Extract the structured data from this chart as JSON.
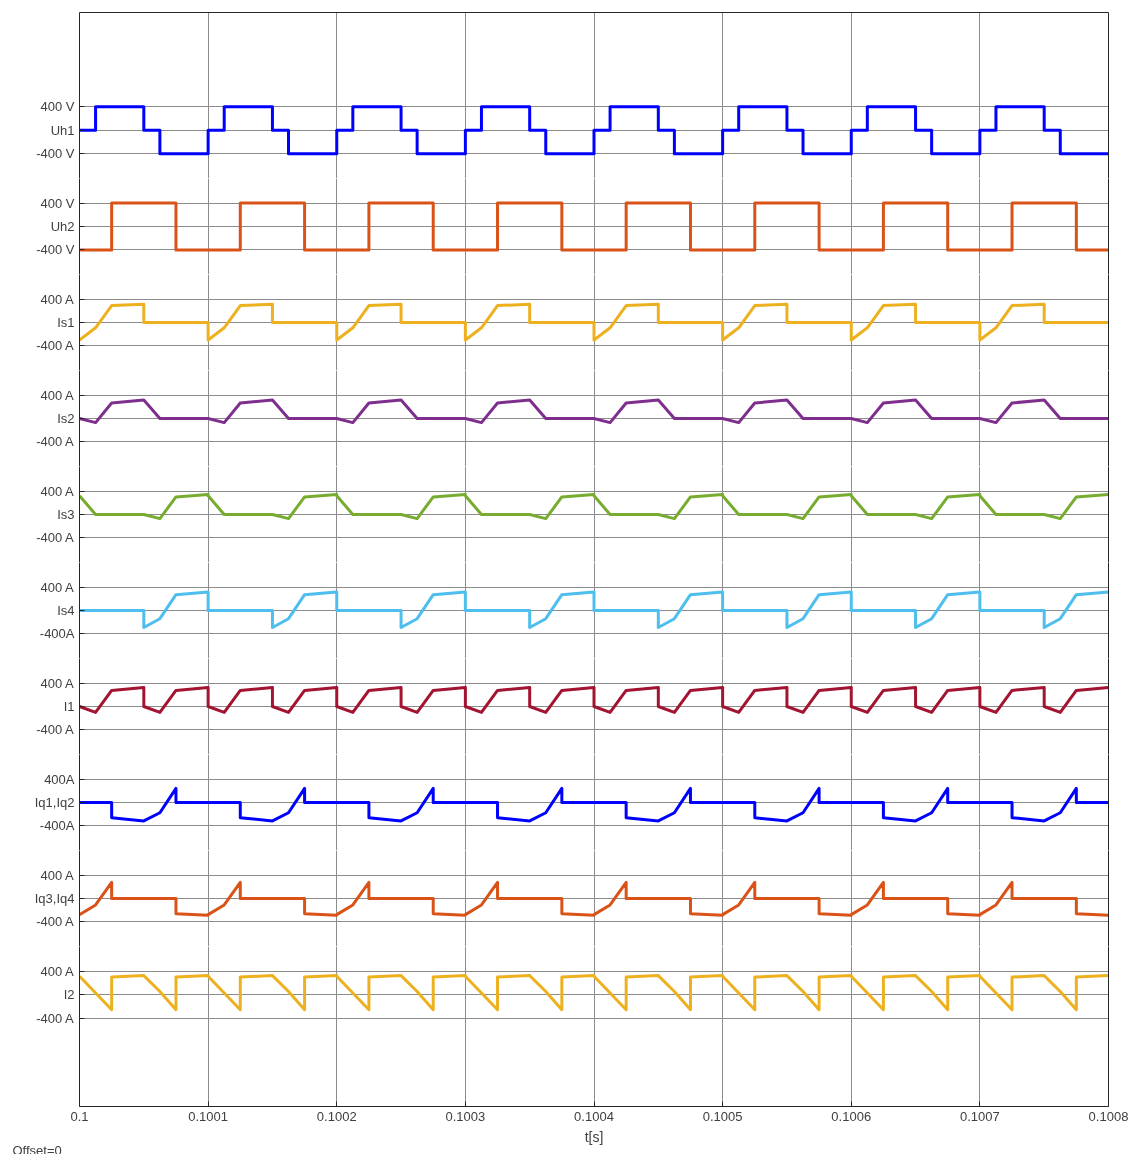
{
  "chart_data": [
    {
      "type": "line",
      "color": "#0000ff",
      "ylim": [
        -820,
        2000
      ],
      "yticks": [
        {
          "value": -400,
          "label": "-400 V"
        },
        {
          "value": 0,
          "label": "Uh1"
        },
        {
          "value": 400,
          "label": "400 V"
        }
      ],
      "xlim": [
        0.1,
        0.1008
      ],
      "xticks": [
        0.1,
        0.1001,
        0.1002,
        0.1003,
        0.1004,
        0.1005,
        0.1006,
        0.1007,
        0.1008
      ],
      "grid": true,
      "tick_labels": "y",
      "x": [
        0.1,
        0.1000125,
        0.1000125,
        0.10005,
        0.10005,
        0.1000625,
        0.1000625,
        0.1001,
        0.1001,
        0.1001125,
        0.1001125,
        0.10015,
        0.10015,
        0.1001625,
        0.1001625,
        0.1002,
        0.1002,
        0.1002125,
        0.1002125,
        0.10025,
        0.10025,
        0.1002625,
        0.1002625,
        0.1003,
        0.1003,
        0.1003125,
        0.1003125,
        0.10035,
        0.10035,
        0.1003625,
        0.1003625,
        0.1004,
        0.1004,
        0.1004125,
        0.1004125,
        0.10045,
        0.10045,
        0.1004625,
        0.1004625,
        0.1005,
        0.1005,
        0.1005125,
        0.1005125,
        0.10055,
        0.10055,
        0.1005625,
        0.1005625,
        0.1006,
        0.1006,
        0.1006125,
        0.1006125,
        0.10065,
        0.10065,
        0.1006625,
        0.1006625,
        0.1007,
        0.1007,
        0.1007125,
        0.1007125,
        0.10075,
        0.10075,
        0.1007625,
        0.1007625,
        0.1008
      ],
      "values": [
        0,
        0,
        400,
        400,
        0,
        0,
        -400,
        -400,
        0,
        0,
        400,
        400,
        0,
        0,
        -400,
        -400,
        0,
        0,
        400,
        400,
        0,
        0,
        -400,
        -400,
        0,
        0,
        400,
        400,
        0,
        0,
        -400,
        -400,
        0,
        0,
        400,
        400,
        0,
        0,
        -400,
        -400,
        0,
        0,
        400,
        400,
        0,
        0,
        -400,
        -400,
        0,
        0,
        400,
        400,
        0,
        0,
        -400,
        -400,
        0,
        0,
        400,
        400,
        0,
        0,
        -400,
        -400
      ]
    },
    {
      "type": "line",
      "color": "#d95319",
      "ylim": [
        -820,
        820
      ],
      "yticks": [
        {
          "value": -400,
          "label": "-400 V"
        },
        {
          "value": 0,
          "label": "Uh2"
        },
        {
          "value": 400,
          "label": "400 V"
        }
      ],
      "xlim": [
        0.1,
        0.1008
      ],
      "xticks": [
        0.1,
        0.1001,
        0.1002,
        0.1003,
        0.1004,
        0.1005,
        0.1006,
        0.1007,
        0.1008
      ],
      "grid": true,
      "tick_labels": "y",
      "x": [
        0.1,
        0.100025,
        0.100025,
        0.100075,
        0.100075,
        0.1001,
        0.1001,
        0.100125,
        0.100125,
        0.100175,
        0.100175,
        0.1002,
        0.1002,
        0.100225,
        0.100225,
        0.100275,
        0.100275,
        0.1003,
        0.1003,
        0.100325,
        0.100325,
        0.100375,
        0.100375,
        0.1004,
        0.1004,
        0.100425,
        0.100425,
        0.100475,
        0.100475,
        0.1005,
        0.1005,
        0.100525,
        0.100525,
        0.100575,
        0.100575,
        0.1006,
        0.1006,
        0.100625,
        0.100625,
        0.100675,
        0.100675,
        0.1007,
        0.1007,
        0.100725,
        0.100725,
        0.100775,
        0.100775,
        0.1008
      ],
      "values": [
        -400,
        -400,
        400,
        400,
        -400,
        -400,
        -400,
        -400,
        400,
        400,
        -400,
        -400,
        -400,
        -400,
        400,
        400,
        -400,
        -400,
        -400,
        -400,
        400,
        400,
        -400,
        -400,
        -400,
        -400,
        400,
        400,
        -400,
        -400,
        -400,
        -400,
        400,
        400,
        -400,
        -400,
        -400,
        -400,
        400,
        400,
        -400,
        -400,
        -400,
        -400,
        400,
        400,
        -400,
        -400
      ]
    },
    {
      "type": "line",
      "color": "#edb120",
      "ylim": [
        -820,
        820
      ],
      "yticks": [
        {
          "value": -400,
          "label": "-400 A"
        },
        {
          "value": 0,
          "label": "Is1"
        },
        {
          "value": 400,
          "label": "400 A"
        }
      ],
      "xlim": [
        0.1,
        0.1008
      ],
      "xticks": [
        0.1,
        0.1001,
        0.1002,
        0.1003,
        0.1004,
        0.1005,
        0.1006,
        0.1007,
        0.1008
      ],
      "grid": true,
      "tick_labels": "y",
      "x": [
        0.1,
        0.1000125,
        0.100025,
        0.10005,
        0.10005,
        0.1001,
        0.1001,
        0.1001125,
        0.100125,
        0.10015,
        0.10015,
        0.1002,
        0.1002,
        0.1002125,
        0.100225,
        0.10025,
        0.10025,
        0.1003,
        0.1003,
        0.1003125,
        0.100325,
        0.10035,
        0.10035,
        0.1004,
        0.1004,
        0.1004125,
        0.100425,
        0.10045,
        0.10045,
        0.1005,
        0.1005,
        0.1005125,
        0.100525,
        0.10055,
        0.10055,
        0.1006,
        0.1006,
        0.1006125,
        0.100625,
        0.10065,
        0.10065,
        0.1007,
        0.1007,
        0.1007125,
        0.100725,
        0.10075,
        0.10075,
        0.1008
      ],
      "values": [
        -300,
        -90,
        290,
        310,
        0,
        0,
        -300,
        -90,
        290,
        310,
        0,
        0,
        -300,
        -90,
        290,
        310,
        0,
        0,
        -300,
        -90,
        290,
        310,
        0,
        0,
        -300,
        -90,
        290,
        310,
        0,
        0,
        -300,
        -90,
        290,
        310,
        0,
        0,
        -300,
        -90,
        290,
        310,
        0,
        0,
        -300,
        -90,
        290,
        310,
        0,
        0
      ]
    },
    {
      "type": "line",
      "color": "#7e2f8e",
      "ylim": [
        -820,
        820
      ],
      "yticks": [
        {
          "value": -400,
          "label": "-400 A"
        },
        {
          "value": 0,
          "label": "Is2"
        },
        {
          "value": 400,
          "label": "400 A"
        }
      ],
      "xlim": [
        0.1,
        0.1008
      ],
      "xticks": [
        0.1,
        0.1001,
        0.1002,
        0.1003,
        0.1004,
        0.1005,
        0.1006,
        0.1007,
        0.1008
      ],
      "grid": true,
      "tick_labels": "y",
      "x": [
        0.1,
        0.1000125,
        0.100025,
        0.10005,
        0.1000625,
        0.1001,
        0.1001,
        0.1001125,
        0.100125,
        0.10015,
        0.1001625,
        0.1002,
        0.1002,
        0.1002125,
        0.100225,
        0.10025,
        0.1002625,
        0.1003,
        0.1003,
        0.1003125,
        0.100325,
        0.10035,
        0.1003625,
        0.1004,
        0.1004,
        0.1004125,
        0.100425,
        0.10045,
        0.1004625,
        0.1005,
        0.1005,
        0.1005125,
        0.100525,
        0.10055,
        0.1005625,
        0.1006,
        0.1006,
        0.1006125,
        0.100625,
        0.10065,
        0.1006625,
        0.1007,
        0.1007,
        0.1007125,
        0.100725,
        0.10075,
        0.1007625,
        0.1008
      ],
      "values": [
        0,
        -70,
        265,
        315,
        0,
        0,
        0,
        -70,
        265,
        315,
        0,
        0,
        0,
        -70,
        265,
        315,
        0,
        0,
        0,
        -70,
        265,
        315,
        0,
        0,
        0,
        -70,
        265,
        315,
        0,
        0,
        0,
        -70,
        265,
        315,
        0,
        0,
        0,
        -70,
        265,
        315,
        0,
        0,
        0,
        -70,
        265,
        315,
        0,
        0
      ]
    },
    {
      "type": "line",
      "color": "#77ac30",
      "ylim": [
        -820,
        820
      ],
      "yticks": [
        {
          "value": -400,
          "label": "-400 A"
        },
        {
          "value": 0,
          "label": "Is3"
        },
        {
          "value": 400,
          "label": "400 A"
        }
      ],
      "xlim": [
        0.1,
        0.1008
      ],
      "xticks": [
        0.1,
        0.1001,
        0.1002,
        0.1003,
        0.1004,
        0.1005,
        0.1006,
        0.1007,
        0.1008
      ],
      "grid": true,
      "tick_labels": "y",
      "x": [
        0.1,
        0.1000125,
        0.10005,
        0.1000625,
        0.100075,
        0.1001,
        0.1001,
        0.1001125,
        0.10015,
        0.1001625,
        0.100175,
        0.1002,
        0.1002,
        0.1002125,
        0.10025,
        0.1002625,
        0.100275,
        0.1003,
        0.1003,
        0.1003125,
        0.10035,
        0.1003625,
        0.100375,
        0.1004,
        0.1004,
        0.1004125,
        0.10045,
        0.1004625,
        0.100475,
        0.1005,
        0.1005,
        0.1005125,
        0.10055,
        0.1005625,
        0.100575,
        0.1006,
        0.1006,
        0.1006125,
        0.10065,
        0.1006625,
        0.100675,
        0.1007,
        0.1007,
        0.1007125,
        0.10075,
        0.1007625,
        0.100775,
        0.1008
      ],
      "values": [
        320,
        0,
        0,
        -70,
        300,
        340,
        320,
        0,
        0,
        -70,
        300,
        340,
        320,
        0,
        0,
        -70,
        300,
        340,
        320,
        0,
        0,
        -70,
        300,
        340,
        320,
        0,
        0,
        -70,
        300,
        340,
        320,
        0,
        0,
        -70,
        300,
        340,
        320,
        0,
        0,
        -70,
        300,
        340,
        320,
        0,
        0,
        -70,
        300,
        340
      ]
    },
    {
      "type": "line",
      "color": "#4dbeee",
      "ylim": [
        -820,
        820
      ],
      "yticks": [
        {
          "value": -400,
          "label": "-400A"
        },
        {
          "value": 0,
          "label": "Is4"
        },
        {
          "value": 400,
          "label": "400 A"
        }
      ],
      "xlim": [
        0.1,
        0.1008
      ],
      "xticks": [
        0.1,
        0.1001,
        0.1002,
        0.1003,
        0.1004,
        0.1005,
        0.1006,
        0.1007,
        0.1008
      ],
      "grid": true,
      "tick_labels": "y",
      "x": [
        0.1,
        0.10005,
        0.10005,
        0.1000625,
        0.100075,
        0.1001,
        0.1001,
        0.10015,
        0.10015,
        0.1001625,
        0.100175,
        0.1002,
        0.1002,
        0.10025,
        0.10025,
        0.1002625,
        0.100275,
        0.1003,
        0.1003,
        0.10035,
        0.10035,
        0.1003625,
        0.100375,
        0.1004,
        0.1004,
        0.10045,
        0.10045,
        0.1004625,
        0.100475,
        0.1005,
        0.1005,
        0.10055,
        0.10055,
        0.1005625,
        0.100575,
        0.1006,
        0.1006,
        0.10065,
        0.10065,
        0.1006625,
        0.100675,
        0.1007,
        0.1007,
        0.10075,
        0.10075,
        0.1007625,
        0.100775,
        0.1008
      ],
      "values": [
        0,
        0,
        -290,
        -140,
        270,
        315,
        0,
        0,
        -290,
        -140,
        270,
        315,
        0,
        0,
        -290,
        -140,
        270,
        315,
        0,
        0,
        -290,
        -140,
        270,
        315,
        0,
        0,
        -290,
        -140,
        270,
        315,
        0,
        0,
        -290,
        -140,
        270,
        315,
        0,
        0,
        -290,
        -140,
        270,
        315,
        0,
        0,
        -290,
        -140,
        270,
        315
      ]
    },
    {
      "type": "line",
      "color": "#a2142f",
      "ylim": [
        -820,
        820
      ],
      "yticks": [
        {
          "value": -400,
          "label": "-400 A"
        },
        {
          "value": 0,
          "label": "I1"
        },
        {
          "value": 400,
          "label": "400 A"
        }
      ],
      "xlim": [
        0.1,
        0.1008
      ],
      "xticks": [
        0.1,
        0.1001,
        0.1002,
        0.1003,
        0.1004,
        0.1005,
        0.1006,
        0.1007,
        0.1008
      ],
      "grid": true,
      "tick_labels": "y",
      "x": [
        0.1,
        0.1000125,
        0.100025,
        0.10005,
        0.10005,
        0.1000625,
        0.100075,
        0.1001,
        0.1001,
        0.1001125,
        0.100125,
        0.10015,
        0.10015,
        0.1001625,
        0.100175,
        0.1002,
        0.1002,
        0.1002125,
        0.100225,
        0.10025,
        0.10025,
        0.1002625,
        0.100275,
        0.1003,
        0.1003,
        0.1003125,
        0.100325,
        0.10035,
        0.10035,
        0.1003625,
        0.100375,
        0.1004,
        0.1004,
        0.1004125,
        0.100425,
        0.10045,
        0.10045,
        0.1004625,
        0.100475,
        0.1005,
        0.1005,
        0.1005125,
        0.100525,
        0.10055,
        0.10055,
        0.1005625,
        0.100575,
        0.1006,
        0.1006,
        0.1006125,
        0.100625,
        0.10065,
        0.10065,
        0.1006625,
        0.100675,
        0.1007,
        0.1007,
        0.1007125,
        0.100725,
        0.10075,
        0.10075,
        0.1007625,
        0.100775,
        0.1008
      ],
      "values": [
        0,
        -100,
        275,
        325,
        0,
        -100,
        275,
        325,
        0,
        -100,
        275,
        325,
        0,
        -100,
        275,
        325,
        0,
        -100,
        275,
        325,
        0,
        -100,
        275,
        325,
        0,
        -100,
        275,
        325,
        0,
        -100,
        275,
        325,
        0,
        -100,
        275,
        325,
        0,
        -100,
        275,
        325,
        0,
        -100,
        275,
        325,
        0,
        -100,
        275,
        325,
        0,
        -100,
        275,
        325,
        0,
        -100,
        275,
        325,
        0,
        -100,
        275,
        325,
        0,
        -100,
        275,
        325
      ]
    },
    {
      "type": "line",
      "color": "#0000ff",
      "ylim": [
        -820,
        820
      ],
      "yticks": [
        {
          "value": -400,
          "label": "-400A"
        },
        {
          "value": 0,
          "label": "Iq1,Iq2"
        },
        {
          "value": 400,
          "label": "400A"
        }
      ],
      "xlim": [
        0.1,
        0.1008
      ],
      "xticks": [
        0.1,
        0.1001,
        0.1002,
        0.1003,
        0.1004,
        0.1005,
        0.1006,
        0.1007,
        0.1008
      ],
      "grid": true,
      "tick_labels": "y",
      "x": [
        0.1,
        0.100025,
        0.100025,
        0.10005,
        0.1000625,
        0.100075,
        0.100075,
        0.1001,
        0.1001,
        0.100125,
        0.100125,
        0.10015,
        0.1001625,
        0.100175,
        0.100175,
        0.1002,
        0.1002,
        0.100225,
        0.100225,
        0.10025,
        0.1002625,
        0.100275,
        0.100275,
        0.1003,
        0.1003,
        0.100325,
        0.100325,
        0.10035,
        0.1003625,
        0.100375,
        0.100375,
        0.1004,
        0.1004,
        0.100425,
        0.100425,
        0.10045,
        0.1004625,
        0.100475,
        0.100475,
        0.1005,
        0.1005,
        0.100525,
        0.100525,
        0.10055,
        0.1005625,
        0.100575,
        0.100575,
        0.1006,
        0.1006,
        0.100625,
        0.100625,
        0.10065,
        0.1006625,
        0.100675,
        0.100675,
        0.1007,
        0.1007,
        0.100725,
        0.100725,
        0.10075,
        0.1007625,
        0.100775,
        0.100775,
        0.1008
      ],
      "values": [
        0,
        0,
        -260,
        -315,
        -175,
        240,
        0,
        0,
        0,
        0,
        -260,
        -315,
        -175,
        240,
        0,
        0,
        0,
        0,
        -260,
        -315,
        -175,
        240,
        0,
        0,
        0,
        0,
        -260,
        -315,
        -175,
        240,
        0,
        0,
        0,
        0,
        -260,
        -315,
        -175,
        240,
        0,
        0,
        0,
        0,
        -260,
        -315,
        -175,
        240,
        0,
        0,
        0,
        0,
        -260,
        -315,
        -175,
        240,
        0,
        0,
        0,
        0,
        -260,
        -315,
        -175,
        240,
        0,
        0
      ]
    },
    {
      "type": "line",
      "color": "#d95319",
      "ylim": [
        -820,
        820
      ],
      "yticks": [
        {
          "value": -400,
          "label": "-400 A"
        },
        {
          "value": 0,
          "label": "Iq3,Iq4"
        },
        {
          "value": 400,
          "label": "400 A"
        }
      ],
      "xlim": [
        0.1,
        0.1008
      ],
      "xticks": [
        0.1,
        0.1001,
        0.1002,
        0.1003,
        0.1004,
        0.1005,
        0.1006,
        0.1007,
        0.1008
      ],
      "grid": true,
      "tick_labels": "y",
      "x": [
        0.1,
        0.1000125,
        0.100025,
        0.100025,
        0.100075,
        0.100075,
        0.1001,
        0.1001,
        0.1001125,
        0.100125,
        0.100125,
        0.100175,
        0.100175,
        0.1002,
        0.1002,
        0.1002125,
        0.100225,
        0.100225,
        0.100275,
        0.100275,
        0.1003,
        0.1003,
        0.1003125,
        0.100325,
        0.100325,
        0.100375,
        0.100375,
        0.1004,
        0.1004,
        0.1004125,
        0.100425,
        0.100425,
        0.100475,
        0.100475,
        0.1005,
        0.1005,
        0.1005125,
        0.100525,
        0.100525,
        0.100575,
        0.100575,
        0.1006,
        0.1006,
        0.1006125,
        0.100625,
        0.100625,
        0.100675,
        0.100675,
        0.1007,
        0.1007,
        0.1007125,
        0.100725,
        0.100725,
        0.100775,
        0.100775,
        0.1008
      ],
      "values": [
        -275,
        -110,
        275,
        0,
        0,
        -260,
        -285,
        -275,
        -110,
        275,
        0,
        0,
        -260,
        -285,
        -275,
        -110,
        275,
        0,
        0,
        -260,
        -285,
        -275,
        -110,
        275,
        0,
        0,
        -260,
        -285,
        -275,
        -110,
        275,
        0,
        0,
        -260,
        -285,
        -275,
        -110,
        275,
        0,
        0,
        -260,
        -285,
        -275,
        -110,
        275,
        0,
        0,
        -260,
        -285,
        -275,
        -110,
        275,
        0,
        0,
        -260,
        -285
      ]
    },
    {
      "type": "line",
      "color": "#edb120",
      "ylim": [
        -1900,
        820
      ],
      "yticks": [
        {
          "value": -400,
          "label": "-400 A"
        },
        {
          "value": 0,
          "label": "I2"
        },
        {
          "value": 400,
          "label": "400 A"
        }
      ],
      "xlim": [
        0.1,
        0.1008
      ],
      "xticks": [
        0.1,
        0.1001,
        0.1002,
        0.1003,
        0.1004,
        0.1005,
        0.1006,
        0.1007,
        0.1008
      ],
      "grid": true,
      "xlabel": "t[s]",
      "annotations": [
        "Offset=0"
      ],
      "x": [
        0.1,
        0.1000125,
        0.100025,
        0.100025,
        0.10005,
        0.1000625,
        0.100075,
        0.100075,
        0.1001,
        0.1001,
        0.1001125,
        0.100125,
        0.100125,
        0.10015,
        0.1001625,
        0.100175,
        0.100175,
        0.1002,
        0.1002,
        0.1002125,
        0.100225,
        0.100225,
        0.10025,
        0.1002625,
        0.100275,
        0.100275,
        0.1003,
        0.1003,
        0.1003125,
        0.100325,
        0.100325,
        0.10035,
        0.1003625,
        0.100375,
        0.100375,
        0.1004,
        0.1004,
        0.1004125,
        0.100425,
        0.100425,
        0.10045,
        0.1004625,
        0.100475,
        0.100475,
        0.1005,
        0.1005,
        0.1005125,
        0.100525,
        0.100525,
        0.10055,
        0.1005625,
        0.100575,
        0.100575,
        0.1006,
        0.1006,
        0.1006125,
        0.100625,
        0.100625,
        0.10065,
        0.1006625,
        0.100675,
        0.100675,
        0.1007,
        0.1007,
        0.1007125,
        0.100725,
        0.100725,
        0.10075,
        0.1007625,
        0.100775,
        0.100775,
        0.1008
      ],
      "values": [
        315,
        30,
        -255,
        300,
        325,
        55,
        -255,
        300,
        325,
        315,
        30,
        -255,
        300,
        325,
        55,
        -255,
        300,
        325,
        315,
        30,
        -255,
        300,
        325,
        55,
        -255,
        300,
        325,
        315,
        30,
        -255,
        300,
        325,
        55,
        -255,
        300,
        325,
        315,
        30,
        -255,
        300,
        325,
        55,
        -255,
        300,
        325,
        315,
        30,
        -255,
        300,
        325,
        55,
        -255,
        300,
        325,
        315,
        30,
        -255,
        300,
        325,
        55,
        -255,
        300,
        325,
        315,
        30,
        -255,
        300,
        325,
        55,
        -255,
        300,
        325
      ]
    }
  ]
}
